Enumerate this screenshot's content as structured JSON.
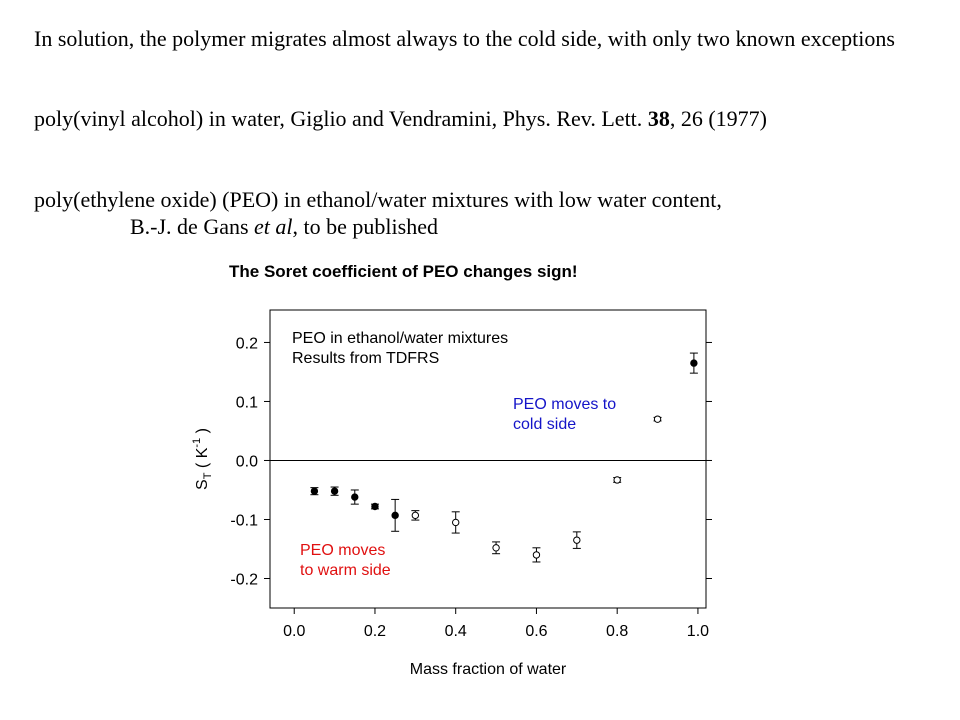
{
  "text": {
    "p1": "In solution, the polymer migrates almost always to the cold side, with only two known exceptions",
    "p2_a": "poly(vinyl alcohol) in water, Giglio and Vendramini, Phys. Rev. Lett. ",
    "p2_b": "38",
    "p2_c": ", 26 (1977)",
    "p3_a": "poly(ethylene oxide) (PEO) in ethanol/water mixtures with low water content,",
    "p3_b": "B.-J. de Gans ",
    "p3_c": "et al",
    "p3_d": ", to be published"
  },
  "chart_data": {
    "type": "scatter",
    "title": "The Soret coefficient of PEO changes sign!",
    "xlabel": "Mass fraction of water",
    "ylabel_parts": {
      "s": "S",
      "sub": "T",
      "paren_open": "( K",
      "sup": "-1",
      "paren_close": ")"
    },
    "xlim": [
      -0.06,
      1.02
    ],
    "ylim": [
      -0.25,
      0.255
    ],
    "x_ticks": [
      "0.0",
      "0.2",
      "0.4",
      "0.6",
      "0.8",
      "1.0"
    ],
    "x_tick_values": [
      0.0,
      0.2,
      0.4,
      0.6,
      0.8,
      1.0
    ],
    "y_ticks": [
      "0.2",
      "0.1",
      "0.0",
      "-0.1",
      "-0.2"
    ],
    "y_tick_values": [
      0.2,
      0.1,
      0.0,
      -0.1,
      -0.2
    ],
    "zero_line": 0.0,
    "series": [
      {
        "marker": "filled-circle",
        "color": "#000000",
        "points": [
          {
            "x": 0.05,
            "y": -0.052,
            "err": 0.006
          },
          {
            "x": 0.1,
            "y": -0.052,
            "err": 0.007
          },
          {
            "x": 0.15,
            "y": -0.062,
            "err": 0.012
          },
          {
            "x": 0.2,
            "y": -0.078,
            "err": 0.004
          },
          {
            "x": 0.25,
            "y": -0.093,
            "err": 0.027
          },
          {
            "x": 0.99,
            "y": 0.165,
            "err": 0.017
          }
        ]
      },
      {
        "marker": "open-circle",
        "color": "#000000",
        "points": [
          {
            "x": 0.3,
            "y": -0.093,
            "err": 0.008
          },
          {
            "x": 0.4,
            "y": -0.105,
            "err": 0.018
          },
          {
            "x": 0.5,
            "y": -0.148,
            "err": 0.01
          },
          {
            "x": 0.6,
            "y": -0.16,
            "err": 0.012
          },
          {
            "x": 0.7,
            "y": -0.135,
            "err": 0.014
          },
          {
            "x": 0.8,
            "y": -0.033,
            "err": 0.004
          },
          {
            "x": 0.9,
            "y": 0.07,
            "err": 0.003
          }
        ]
      }
    ],
    "annotations": {
      "box_line1": "PEO in ethanol/water mixtures",
      "box_line2": "Results from TDFRS",
      "cold_line1": "PEO moves to",
      "cold_line2": "cold side",
      "cold_color": "#1414c8",
      "warm_line1": "PEO moves",
      "warm_line2": "to warm side",
      "warm_color": "#e01010"
    }
  }
}
